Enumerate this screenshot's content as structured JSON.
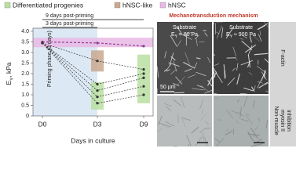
{
  "chart_data": {
    "type": "line",
    "ylabel": {
      "symbol": "E",
      "sub": "Y",
      "unit": ", kPa"
    },
    "xlabel": "Days in culture",
    "categories": [
      "D0",
      "D3",
      "D9"
    ],
    "ylim": [
      0,
      4
    ],
    "yticks": [
      0,
      0.5,
      {
        "value": 1,
        "label": "1.0"
      },
      1.5,
      {
        "value": 2,
        "label": "2.0"
      },
      2.5,
      {
        "value": 3,
        "label": "3.0"
      },
      3.5,
      {
        "value": 4,
        "label": "4.0"
      }
    ],
    "annotations": [
      "9 days post-priming",
      "3 days post-priming",
      "Priming phase (3 days)"
    ],
    "regions": [
      {
        "name": "Differentiated progenies",
        "color": "#b9dfa0",
        "boxes": [
          {
            "category": 1,
            "range": [
              0.3,
              1.6
            ]
          },
          {
            "category": 2,
            "range": [
              0.6,
              2.9
            ]
          }
        ]
      },
      {
        "name": "hNSC-like",
        "color": "#c9a88e",
        "boxes": [
          {
            "category": 1,
            "range": [
              2.1,
              3.1
            ]
          }
        ]
      },
      {
        "name": "hNSC",
        "color": "#e9b8e4",
        "boxes": [
          {
            "range": [
              3.25,
              3.7
            ]
          }
        ]
      }
    ],
    "series": [
      {
        "name": "hNSC",
        "color": "#8e3f94",
        "values": [
          3.5,
          3.45,
          3.3
        ]
      },
      {
        "color": "#333333",
        "values": [
          3.45,
          2.6,
          2.2
        ]
      },
      {
        "color": "#333333",
        "values": [
          3.45,
          1.5,
          2.0
        ]
      },
      {
        "color": "#333333",
        "values": [
          3.45,
          1.2,
          1.8
        ]
      },
      {
        "color": "#333333",
        "values": [
          3.45,
          0.9,
          1.4
        ]
      },
      {
        "color": "#333333",
        "values": [
          3.45,
          0.6,
          1.0
        ]
      }
    ]
  },
  "panel": {
    "title": "Mechanotransduction mechanism",
    "columns": [
      {
        "label": "Substrate",
        "symbol": "E",
        "sub": "Y",
        "value": " ≈ 80 Pa"
      },
      {
        "label": "Substrate",
        "symbol": "E",
        "sub": "Y",
        "value": " ≈ 900 Pa"
      }
    ],
    "rows": [
      [
        "F-actin"
      ],
      [
        "Non-muscle",
        "myosin II",
        "inhibition"
      ]
    ],
    "scale_bar": "50 µm"
  }
}
